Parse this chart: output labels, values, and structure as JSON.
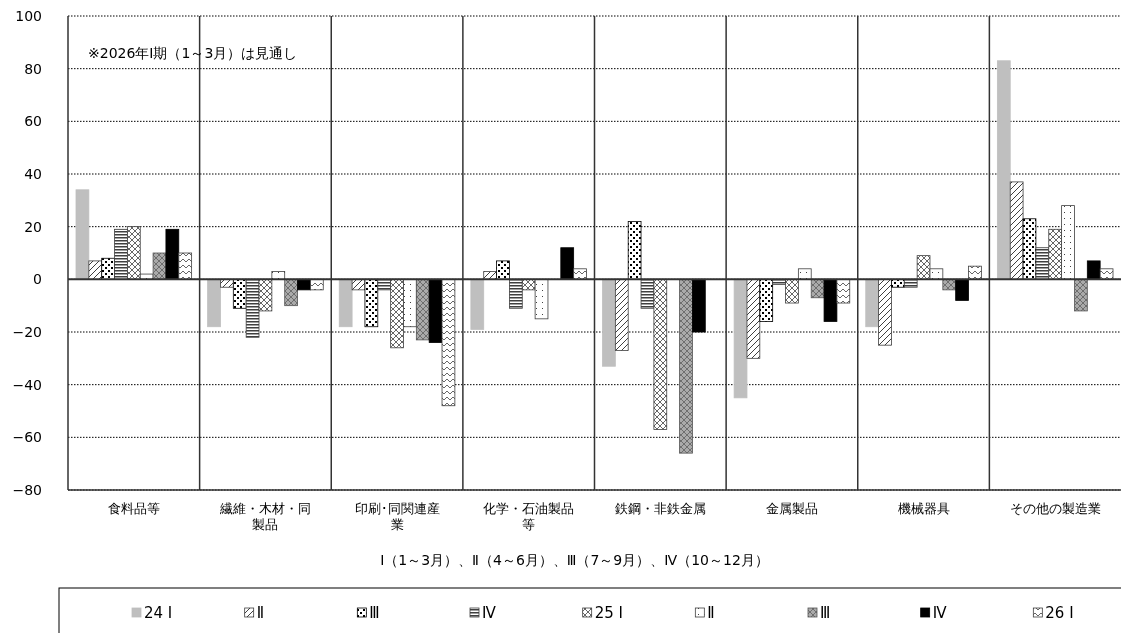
{
  "chart_data": {
    "type": "bar",
    "categories": [
      "食料品等",
      "繊維・木材・同製品",
      "印刷･同関連産業",
      "化学・石油製品等",
      "鉄鋼・非鉄金属",
      "金属製品",
      "機械器具",
      "その他の製造業"
    ],
    "series": [
      {
        "name": "24 Ⅰ",
        "color": "#bfbfbf",
        "values": [
          34,
          -18,
          -18,
          -19,
          -33,
          -45,
          -18,
          83
        ]
      },
      {
        "name": "Ⅱ",
        "color": "#404040",
        "values": [
          7,
          -3,
          -4,
          3,
          -27,
          -30,
          -25,
          37
        ]
      },
      {
        "name": "Ⅲ",
        "color": "#000000",
        "values": [
          8,
          -11,
          -18,
          7,
          22,
          -16,
          -3,
          23
        ]
      },
      {
        "name": "Ⅳ",
        "color": "#404040",
        "values": [
          19,
          -22,
          -4,
          -11,
          -11,
          -2,
          -3,
          12
        ]
      },
      {
        "name": "25 Ⅰ",
        "color": "#404040",
        "values": [
          20,
          -12,
          -26,
          -4,
          -57,
          -9,
          9,
          19
        ]
      },
      {
        "name": "Ⅱ",
        "color": "#404040",
        "values": [
          2,
          3,
          -18,
          -15,
          0,
          4,
          4,
          28
        ]
      },
      {
        "name": "Ⅲ",
        "color": "#555555",
        "values": [
          10,
          -10,
          -23,
          0,
          -66,
          -7,
          -4,
          -12
        ]
      },
      {
        "name": "Ⅳ",
        "color": "#000000",
        "values": [
          19,
          -4,
          -24,
          12,
          -20,
          -16,
          -8,
          7
        ]
      },
      {
        "name": "26 Ⅰ",
        "color": "#404040",
        "values": [
          10,
          -4,
          -48,
          4,
          0,
          -9,
          5,
          4
        ]
      }
    ],
    "ylim": [
      -80,
      100
    ],
    "yticks": [
      -80,
      -60,
      -40,
      -20,
      0,
      20,
      40,
      60,
      80,
      100
    ],
    "grid": "y",
    "legend": "bottom",
    "xlabel": "Ⅰ（1～3月）、Ⅱ（4～6月）、Ⅲ（7～9月）、Ⅳ（10～12月）",
    "annotations": [
      "※2026年Ⅰ期（1～3月）は見通し"
    ]
  }
}
